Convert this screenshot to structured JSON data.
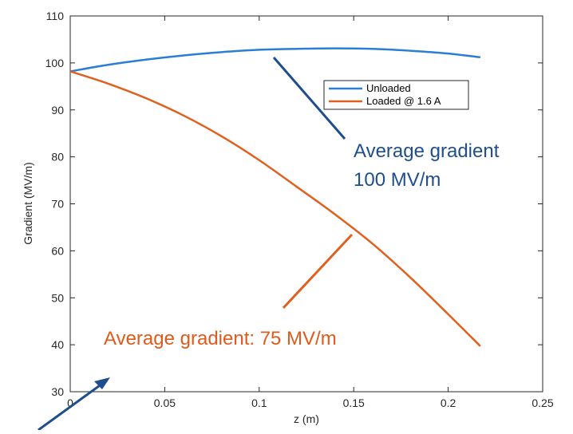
{
  "colors": {
    "unloaded": "#2a7fd4",
    "loaded": "#e0601e",
    "annotation_blue": "#1f4e8c",
    "annotation_orange": "#e05a1a",
    "axis": "#262626"
  },
  "chart_data": {
    "type": "line",
    "xlabel": "z (m)",
    "ylabel": "Gradient (MV/m)",
    "xlim": [
      0,
      0.25
    ],
    "ylim": [
      30,
      110
    ],
    "xticks": [
      0,
      0.05,
      0.1,
      0.15,
      0.2,
      0.25
    ],
    "xtick_labels": [
      "0",
      "0.05",
      "0.1",
      "0.15",
      "0.2",
      "0.25"
    ],
    "yticks": [
      30,
      40,
      50,
      60,
      70,
      80,
      90,
      100,
      110
    ],
    "ytick_labels": [
      "30",
      "40",
      "50",
      "60",
      "70",
      "80",
      "90",
      "100",
      "110"
    ],
    "grid": false,
    "legend_position": "top-right",
    "series": [
      {
        "name": "Unloaded",
        "color": "#2a7fd4",
        "x": [
          0,
          0.02,
          0.04,
          0.06,
          0.08,
          0.1,
          0.12,
          0.14,
          0.16,
          0.18,
          0.2,
          0.217
        ],
        "y": [
          98.2,
          99.6,
          100.7,
          101.6,
          102.3,
          102.8,
          103.0,
          103.1,
          103.0,
          102.6,
          102.0,
          101.2
        ]
      },
      {
        "name": "Loaded @ 1.6 A",
        "color": "#e0601e",
        "x": [
          0,
          0.02,
          0.04,
          0.06,
          0.08,
          0.1,
          0.12,
          0.14,
          0.16,
          0.18,
          0.2,
          0.217
        ],
        "y": [
          98.2,
          95.6,
          92.5,
          88.8,
          84.4,
          79.3,
          73.6,
          67.8,
          61.5,
          54.3,
          46.5,
          39.7
        ]
      }
    ],
    "annotations": [
      {
        "lines": [
          "Average gradient",
          "100 MV/m"
        ],
        "color": "#1f4e8c",
        "points_to_series": "Unloaded"
      },
      {
        "lines": [
          "Average gradient: 75 MV/m"
        ],
        "color": "#e05a1a",
        "points_to_series": "Loaded @ 1.6 A"
      }
    ]
  }
}
